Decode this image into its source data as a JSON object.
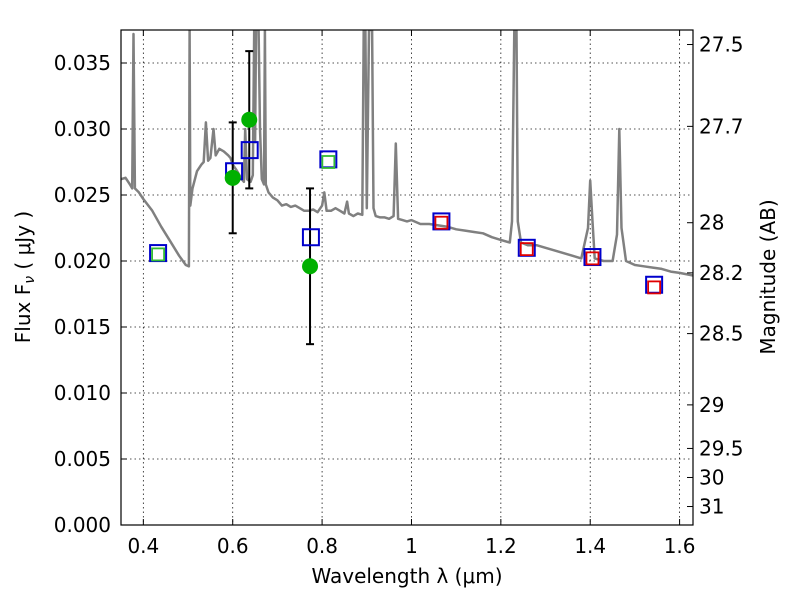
{
  "chart_data": {
    "type": "scatter",
    "xlabel": "Wavelength  λ (μm)",
    "ylabel": "Flux  F",
    "ylabel_sub": "ν",
    "ylabel_unit": " ( μJy )",
    "y2label": "Magnitude (AB)",
    "xlim": [
      0.35,
      1.63
    ],
    "ylim": [
      0.0,
      0.0375
    ],
    "x_ticks": [
      0.4,
      0.6,
      0.8,
      1.0,
      1.2,
      1.4,
      1.6
    ],
    "x_tick_labels": [
      "0.4",
      "0.6",
      "0.8",
      "1",
      "1.2",
      "1.4",
      "1.6"
    ],
    "y_ticks": [
      0.0,
      0.005,
      0.01,
      0.015,
      0.02,
      0.025,
      0.03,
      0.035
    ],
    "y_tick_labels": [
      "0.000",
      "0.005",
      "0.010",
      "0.015",
      "0.020",
      "0.025",
      "0.030",
      "0.035"
    ],
    "y2_ticks": [
      {
        "flux": 0.0364,
        "label": "27.5"
      },
      {
        "flux": 0.0302,
        "label": "27.7"
      },
      {
        "flux": 0.0229,
        "label": "28"
      },
      {
        "flux": 0.0191,
        "label": "28.2"
      },
      {
        "flux": 0.0145,
        "label": "28.5"
      },
      {
        "flux": 0.0091,
        "label": "29"
      },
      {
        "flux": 0.0058,
        "label": "29.5"
      },
      {
        "flux": 0.0036,
        "label": "30"
      },
      {
        "flux": 0.0014,
        "label": "31"
      }
    ],
    "grid": true,
    "model_spectrum": {
      "color": "#808080",
      "points": [
        [
          0.35,
          0.0262
        ],
        [
          0.36,
          0.0263
        ],
        [
          0.37,
          0.0258
        ],
        [
          0.375,
          0.0255
        ],
        [
          0.378,
          0.0372
        ],
        [
          0.381,
          0.0255
        ],
        [
          0.39,
          0.0252
        ],
        [
          0.4,
          0.0247
        ],
        [
          0.42,
          0.0238
        ],
        [
          0.44,
          0.0226
        ],
        [
          0.46,
          0.0215
        ],
        [
          0.48,
          0.0204
        ],
        [
          0.495,
          0.0197
        ],
        [
          0.502,
          0.0196
        ],
        [
          0.5035,
          0.0375
        ],
        [
          0.505,
          0.0242
        ],
        [
          0.51,
          0.0255
        ],
        [
          0.52,
          0.0268
        ],
        [
          0.53,
          0.0273
        ],
        [
          0.535,
          0.0275
        ],
        [
          0.54,
          0.0305
        ],
        [
          0.545,
          0.0276
        ],
        [
          0.55,
          0.0278
        ],
        [
          0.557,
          0.03
        ],
        [
          0.562,
          0.028
        ],
        [
          0.57,
          0.0285
        ],
        [
          0.58,
          0.0283
        ],
        [
          0.59,
          0.028
        ],
        [
          0.595,
          0.0278
        ],
        [
          0.6,
          0.0273
        ],
        [
          0.61,
          0.0268
        ],
        [
          0.62,
          0.0262
        ],
        [
          0.625,
          0.026
        ],
        [
          0.628,
          0.03
        ],
        [
          0.632,
          0.0262
        ],
        [
          0.64,
          0.026
        ],
        [
          0.645,
          0.0265
        ],
        [
          0.648,
          0.0375
        ],
        [
          0.65,
          0.029
        ],
        [
          0.652,
          0.0375
        ],
        [
          0.655,
          0.0375
        ],
        [
          0.658,
          0.0375
        ],
        [
          0.661,
          0.03
        ],
        [
          0.665,
          0.0262
        ],
        [
          0.67,
          0.0258
        ],
        [
          0.672,
          0.0375
        ],
        [
          0.674,
          0.0258
        ],
        [
          0.68,
          0.0252
        ],
        [
          0.69,
          0.0248
        ],
        [
          0.7,
          0.0246
        ],
        [
          0.71,
          0.0242
        ],
        [
          0.72,
          0.0243
        ],
        [
          0.73,
          0.0241
        ],
        [
          0.74,
          0.0242
        ],
        [
          0.75,
          0.024
        ],
        [
          0.76,
          0.0238
        ],
        [
          0.77,
          0.0238
        ],
        [
          0.78,
          0.0239
        ],
        [
          0.79,
          0.0237
        ],
        [
          0.8,
          0.0242
        ],
        [
          0.805,
          0.0252
        ],
        [
          0.81,
          0.0238
        ],
        [
          0.82,
          0.0238
        ],
        [
          0.83,
          0.024
        ],
        [
          0.84,
          0.0238
        ],
        [
          0.85,
          0.0236
        ],
        [
          0.856,
          0.0245
        ],
        [
          0.86,
          0.0236
        ],
        [
          0.87,
          0.0234
        ],
        [
          0.88,
          0.0236
        ],
        [
          0.89,
          0.0235
        ],
        [
          0.893,
          0.0375
        ],
        [
          0.897,
          0.0375
        ],
        [
          0.9,
          0.024
        ],
        [
          0.905,
          0.0375
        ],
        [
          0.912,
          0.0375
        ],
        [
          0.915,
          0.024
        ],
        [
          0.92,
          0.0234
        ],
        [
          0.93,
          0.0233
        ],
        [
          0.94,
          0.0233
        ],
        [
          0.95,
          0.0232
        ],
        [
          0.96,
          0.0234
        ],
        [
          0.965,
          0.0289
        ],
        [
          0.97,
          0.0232
        ],
        [
          0.98,
          0.0231
        ],
        [
          0.99,
          0.023
        ],
        [
          1.0,
          0.0231
        ],
        [
          1.02,
          0.0228
        ],
        [
          1.04,
          0.0228
        ],
        [
          1.06,
          0.0227
        ],
        [
          1.08,
          0.0226
        ],
        [
          1.1,
          0.0224
        ],
        [
          1.12,
          0.0223
        ],
        [
          1.14,
          0.0222
        ],
        [
          1.16,
          0.0221
        ],
        [
          1.18,
          0.0218
        ],
        [
          1.2,
          0.0216
        ],
        [
          1.22,
          0.0214
        ],
        [
          1.225,
          0.023
        ],
        [
          1.23,
          0.0375
        ],
        [
          1.235,
          0.0375
        ],
        [
          1.238,
          0.023
        ],
        [
          1.245,
          0.0214
        ],
        [
          1.26,
          0.0212
        ],
        [
          1.28,
          0.0212
        ],
        [
          1.3,
          0.021
        ],
        [
          1.32,
          0.0208
        ],
        [
          1.34,
          0.0206
        ],
        [
          1.36,
          0.0204
        ],
        [
          1.38,
          0.0202
        ],
        [
          1.395,
          0.0225
        ],
        [
          1.4,
          0.0261
        ],
        [
          1.405,
          0.023
        ],
        [
          1.41,
          0.0202
        ],
        [
          1.43,
          0.02
        ],
        [
          1.45,
          0.02
        ],
        [
          1.46,
          0.022
        ],
        [
          1.465,
          0.03
        ],
        [
          1.47,
          0.0225
        ],
        [
          1.48,
          0.02
        ],
        [
          1.5,
          0.0197
        ],
        [
          1.52,
          0.0196
        ],
        [
          1.54,
          0.0195
        ],
        [
          1.56,
          0.0194
        ],
        [
          1.58,
          0.0192
        ],
        [
          1.6,
          0.0191
        ],
        [
          1.63,
          0.0189
        ]
      ]
    },
    "observed_points": {
      "color": "#00b000",
      "points": [
        {
          "x": 0.6,
          "y": 0.0263,
          "err": 0.0042
        },
        {
          "x": 0.637,
          "y": 0.0307,
          "err": 0.0052
        },
        {
          "x": 0.773,
          "y": 0.0196,
          "err": 0.0059
        }
      ]
    },
    "model_blue_squares": {
      "color": "#0000cc",
      "points": [
        [
          0.433,
          0.0206
        ],
        [
          0.603,
          0.0268
        ],
        [
          0.638,
          0.0284
        ],
        [
          0.775,
          0.0218
        ],
        [
          0.814,
          0.0277
        ],
        [
          1.067,
          0.023
        ],
        [
          1.258,
          0.021
        ],
        [
          1.405,
          0.0203
        ],
        [
          1.543,
          0.0182
        ]
      ]
    },
    "green_open_squares": {
      "color": "#33bb33",
      "points": [
        [
          0.433,
          0.0205
        ],
        [
          0.814,
          0.0275
        ]
      ]
    },
    "red_open_squares": {
      "color": "#e00000",
      "points": [
        [
          1.067,
          0.0229
        ],
        [
          1.258,
          0.0209
        ],
        [
          1.405,
          0.0202
        ],
        [
          1.543,
          0.018
        ]
      ]
    }
  }
}
